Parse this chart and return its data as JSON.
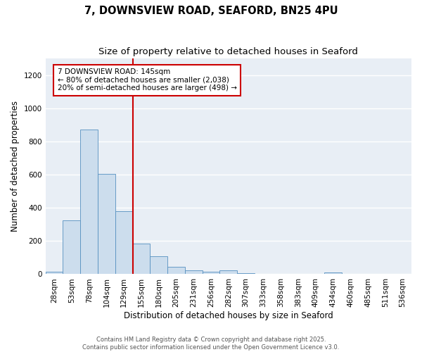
{
  "title_line1": "7, DOWNSVIEW ROAD, SEAFORD, BN25 4PU",
  "title_line2": "Size of property relative to detached houses in Seaford",
  "xlabel": "Distribution of detached houses by size in Seaford",
  "ylabel": "Number of detached properties",
  "categories": [
    "28sqm",
    "53sqm",
    "78sqm",
    "104sqm",
    "129sqm",
    "155sqm",
    "180sqm",
    "205sqm",
    "231sqm",
    "256sqm",
    "282sqm",
    "307sqm",
    "333sqm",
    "358sqm",
    "383sqm",
    "409sqm",
    "434sqm",
    "460sqm",
    "485sqm",
    "511sqm",
    "536sqm"
  ],
  "values": [
    13,
    325,
    870,
    605,
    380,
    185,
    108,
    45,
    22,
    15,
    22,
    8,
    0,
    0,
    0,
    0,
    10,
    0,
    0,
    0,
    0
  ],
  "bar_color": "#ccdded",
  "bar_edge_color": "#5590c0",
  "vline_x_index": 4.5,
  "vline_color": "#cc0000",
  "annotation_text": "7 DOWNSVIEW ROAD: 145sqm\n← 80% of detached houses are smaller (2,038)\n20% of semi-detached houses are larger (498) →",
  "annotation_box_facecolor": "#ffffff",
  "annotation_box_edgecolor": "#cc0000",
  "ylim": [
    0,
    1300
  ],
  "yticks": [
    0,
    200,
    400,
    600,
    800,
    1000,
    1200
  ],
  "footnote1": "Contains HM Land Registry data © Crown copyright and database right 2025.",
  "footnote2": "Contains public sector information licensed under the Open Government Licence v3.0.",
  "plot_bg_color": "#e8eef5",
  "fig_bg_color": "#ffffff",
  "grid_color": "#ffffff",
  "title_fontsize": 10.5,
  "subtitle_fontsize": 9.5,
  "axis_label_fontsize": 8.5,
  "tick_fontsize": 7.5,
  "annotation_fontsize": 7.5,
  "footnote_fontsize": 6
}
